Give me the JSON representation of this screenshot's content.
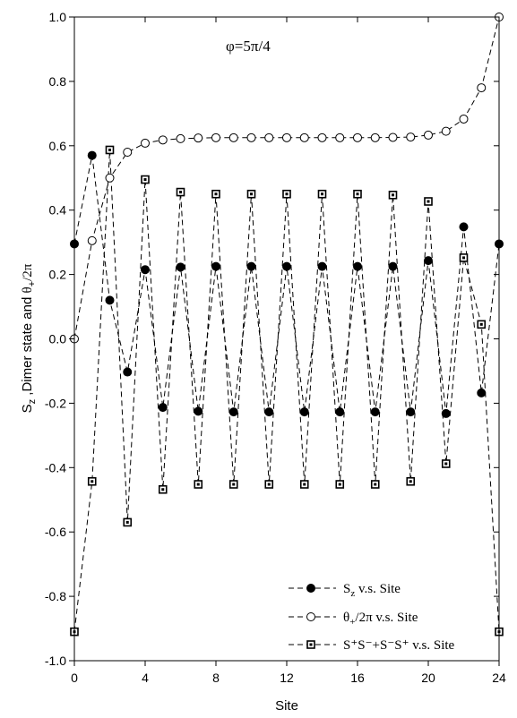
{
  "chart_data": {
    "type": "line",
    "xlabel": "Site",
    "ylabel": "S_z ,Dimer state and  θ_+/2π",
    "xlim": [
      0,
      24
    ],
    "ylim": [
      -1.0,
      1.0
    ],
    "xticks": [
      0,
      4,
      8,
      12,
      16,
      20,
      24
    ],
    "xtick_labels": [
      "0",
      "4",
      "8",
      "12",
      "16",
      "20",
      "24"
    ],
    "yticks": [
      -1.0,
      -0.8,
      -0.6,
      -0.4,
      -0.2,
      0.0,
      0.2,
      0.4,
      0.6,
      0.8,
      1.0
    ],
    "ytick_labels": [
      "-1.0",
      "-0.8",
      "-0.6",
      "-0.4",
      "-0.2",
      "0.0",
      "0.2",
      "0.4",
      "0.6",
      "0.8",
      "1.0"
    ],
    "grid": false,
    "legend_position": "bottom-right",
    "annotation": "φ=5π/4",
    "x": [
      0,
      1,
      2,
      3,
      4,
      5,
      6,
      7,
      8,
      9,
      10,
      11,
      12,
      13,
      14,
      15,
      16,
      17,
      18,
      19,
      20,
      21,
      22,
      23,
      24
    ],
    "series": [
      {
        "name": "S_z v.s. Site",
        "marker": "filled-circle",
        "values": [
          0.295,
          0.57,
          0.12,
          -0.103,
          0.215,
          -0.213,
          0.223,
          -0.225,
          0.225,
          -0.227,
          0.225,
          -0.227,
          0.225,
          -0.227,
          0.225,
          -0.227,
          0.225,
          -0.227,
          0.225,
          -0.227,
          0.243,
          -0.232,
          0.348,
          -0.168,
          0.295
        ]
      },
      {
        "name": "θ_+/2π v.s. Site",
        "marker": "open-circle",
        "values": [
          0.0,
          0.305,
          0.5,
          0.58,
          0.608,
          0.618,
          0.622,
          0.624,
          0.625,
          0.625,
          0.625,
          0.625,
          0.625,
          0.625,
          0.625,
          0.625,
          0.625,
          0.625,
          0.626,
          0.627,
          0.633,
          0.645,
          0.683,
          0.78,
          1.0
        ]
      },
      {
        "name": "S+S-+S-S+ v.s. Site",
        "marker": "dotted-square",
        "values": [
          -0.91,
          -0.443,
          0.587,
          -0.57,
          0.495,
          -0.468,
          0.456,
          -0.452,
          0.45,
          -0.452,
          0.45,
          -0.452,
          0.45,
          -0.452,
          0.45,
          -0.452,
          0.45,
          -0.452,
          0.447,
          -0.443,
          0.427,
          -0.388,
          0.252,
          0.045,
          -0.91
        ]
      }
    ],
    "legend_entries": [
      {
        "main": "S",
        "sub": "z",
        "rest": " v.s. Site"
      },
      {
        "main": "θ",
        "sub": "+",
        "rest": "/2π  v.s. Site"
      },
      {
        "main": "S⁺S⁻+S⁻S⁺",
        "sub": "",
        "rest": " v.s. Site"
      }
    ],
    "ylabel_parts": {
      "s": "S",
      "z": "z",
      "mid": " ,Dimer state and  ",
      "theta": "θ",
      "plus": "+",
      "tail": "/2π"
    }
  }
}
